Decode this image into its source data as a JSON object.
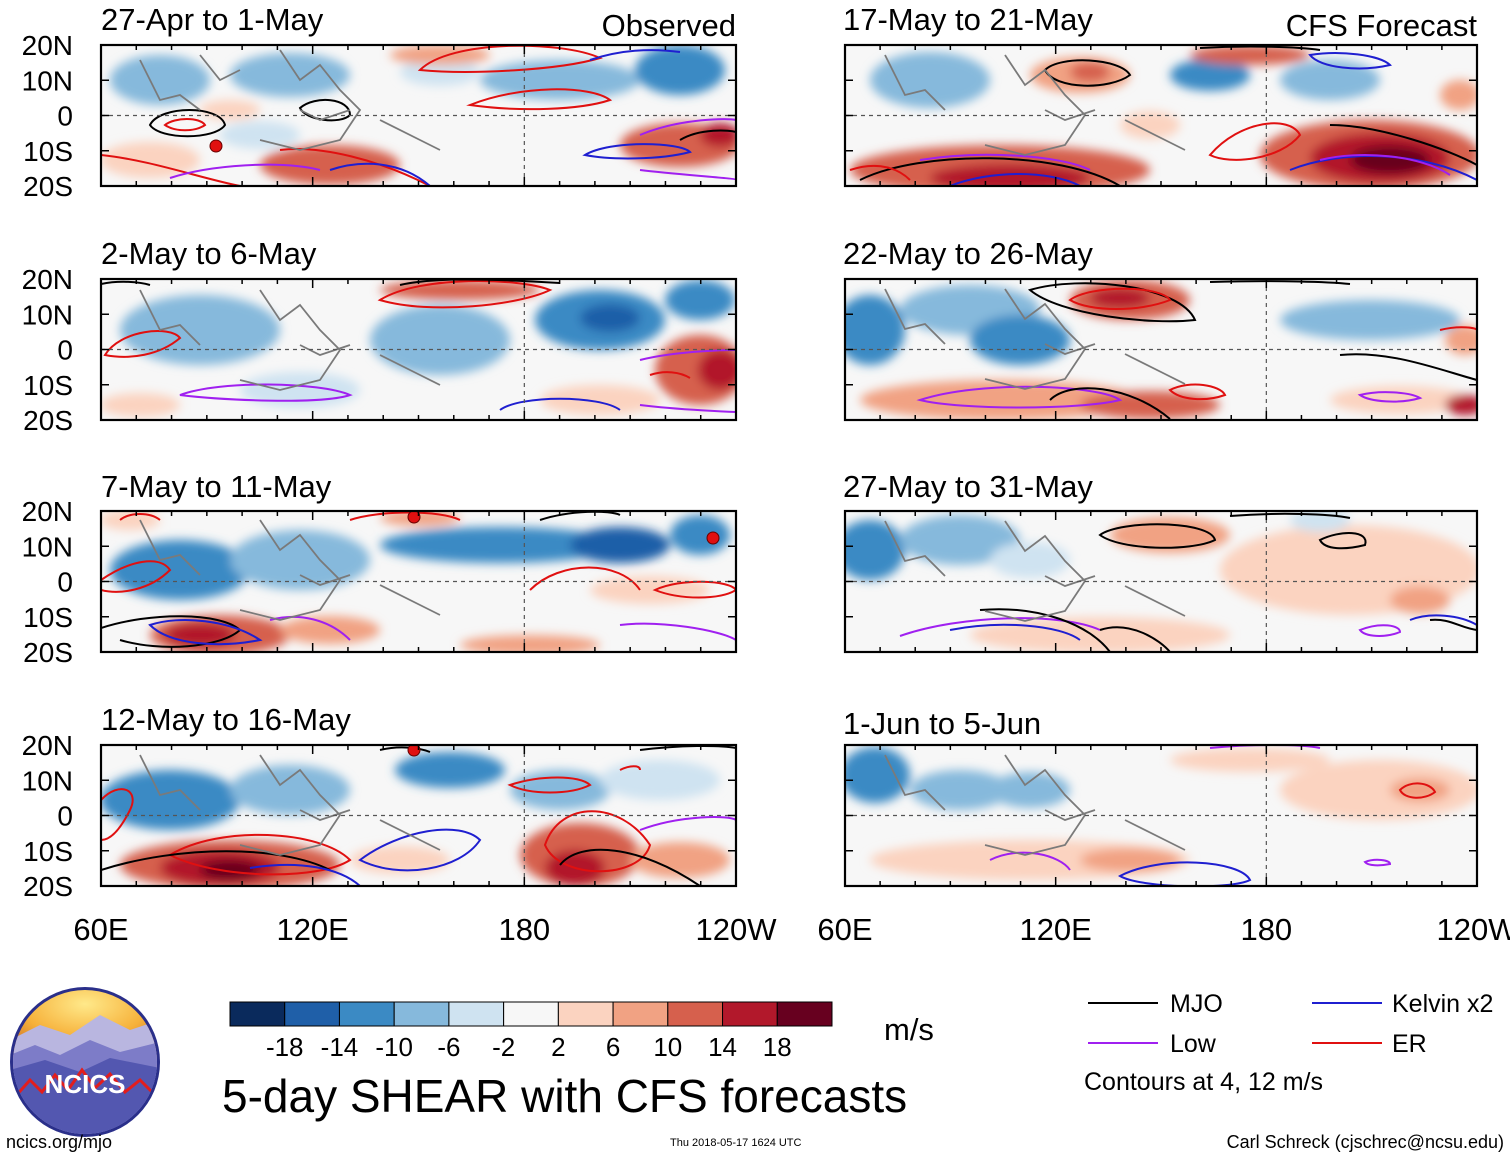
{
  "figure_title": "5-day SHEAR with CFS forecasts",
  "logo": {
    "text": "NCICS"
  },
  "footer": {
    "url": "ncics.org/mjo",
    "timestamp": "Thu 2018-05-17 1624 UTC",
    "author": "Carl Schreck (cjschrec@ncsu.edu)"
  },
  "columns": [
    {
      "label": "Observed",
      "panels": [
        "27-Apr to 1-May",
        "2-May to 6-May",
        "7-May to 11-May",
        "12-May to 16-May"
      ]
    },
    {
      "label": "CFS Forecast",
      "panels": [
        "17-May to 21-May",
        "22-May to 26-May",
        "27-May to 31-May",
        "1-Jun to 5-Jun"
      ]
    }
  ],
  "legend": {
    "items": [
      {
        "label": "MJO",
        "color": "#000000"
      },
      {
        "label": "Kelvin x2",
        "color": "#1f1fd0"
      },
      {
        "label": "Low",
        "color": "#a020f0"
      },
      {
        "label": "ER",
        "color": "#e01010"
      }
    ],
    "note": "Contours at 4, 12 m/s"
  },
  "chart_data": {
    "type": "heatmap",
    "variable": "5-day SHEAR",
    "units": "m/s",
    "x_axis": {
      "range": [
        "60E",
        "120W"
      ],
      "ticks": [
        "60E",
        "120E",
        "180",
        "120W"
      ]
    },
    "y_axis": {
      "range": [
        "20S",
        "20N"
      ],
      "ticks": [
        "20N",
        "10N",
        "0",
        "10S",
        "20S"
      ]
    },
    "colorbar": {
      "levels": [
        "-18",
        "-14",
        "-10",
        "-6",
        "-2",
        "2",
        "6",
        "10",
        "14",
        "18"
      ],
      "colors": [
        "#0a2a5c",
        "#1f5fa8",
        "#3b8ac4",
        "#86b9dc",
        "#cfe3f1",
        "#f7f7f7",
        "#fbd3c0",
        "#f1a283",
        "#d6604d",
        "#b2182b",
        "#67001f"
      ]
    },
    "contours": [
      "MJO",
      "Kelvin x2",
      "Low",
      "ER"
    ],
    "contour_levels": [
      4,
      12
    ],
    "grid_lines": [
      "0",
      "180"
    ]
  }
}
